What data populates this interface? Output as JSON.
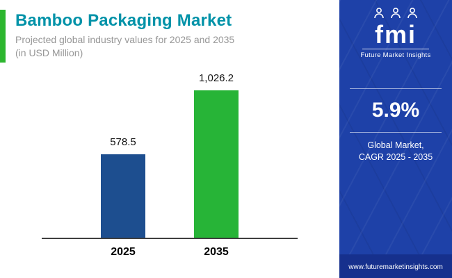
{
  "header": {
    "title": "Bamboo Packaging Market",
    "subtitle_line1": "Projected global industry values for 2025 and 2035",
    "subtitle_line2": "(in USD Million)"
  },
  "chart_data": {
    "type": "bar",
    "categories": [
      "2025",
      "2035"
    ],
    "values": [
      578.5,
      1026.2
    ],
    "value_labels": [
      "578.5",
      "1,026.2"
    ],
    "title": "Bamboo Packaging Market",
    "subtitle": "Projected global industry values for 2025 and 2035 (in USD Million)",
    "xlabel": "",
    "ylabel": "USD Million",
    "ylim": [
      0,
      1100
    ],
    "bar_colors": [
      "#1d4e8f",
      "#27b437"
    ],
    "grid": false,
    "legend": false
  },
  "sidebar": {
    "logo_text": "fmi",
    "logo_subtext": "Future Market Insights",
    "cagr_value": "5.9%",
    "cagr_label_line1": "Global Market,",
    "cagr_label_line2": "CAGR 2025 - 2035",
    "website": "www.futuremarketinsights.com"
  },
  "colors": {
    "title_teal": "#0092a8",
    "accent_green": "#2db62f",
    "bar_2025": "#1d4e8f",
    "bar_2035": "#27b437",
    "sidebar_blue": "#1e41a8",
    "sidebar_bottom": "#16308d"
  }
}
